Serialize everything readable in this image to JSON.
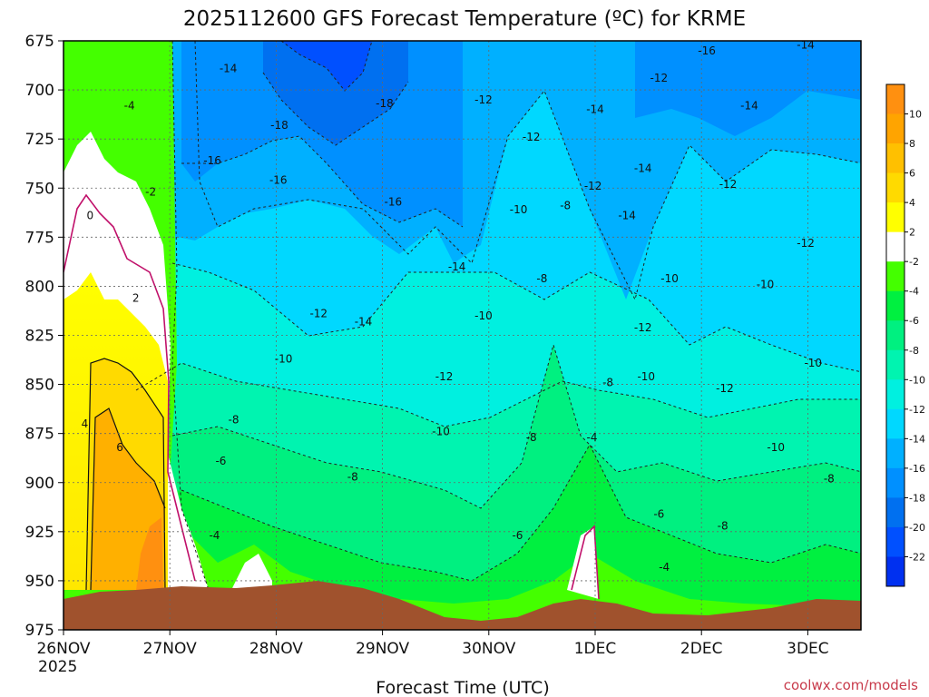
{
  "chart_data": {
    "type": "heatmap",
    "title": "2025112600 GFS Forecast Temperature (ºC) for KRME",
    "xlabel": "Forecast Time (UTC)",
    "ylabel": "",
    "credit": "coolwx.com/models",
    "x_ticks": [
      "26NOV",
      "27NOV",
      "28NOV",
      "29NOV",
      "30NOV",
      "1DEC",
      "2DEC",
      "3DEC"
    ],
    "x_tick_sublabel": "2025",
    "y_ticks": [
      675,
      700,
      725,
      750,
      775,
      800,
      825,
      850,
      875,
      900,
      925,
      950,
      975
    ],
    "y_axis": "pressure (hPa), inverted",
    "ylim": [
      975,
      675
    ],
    "xlim_days": [
      0,
      7.5
    ],
    "grid": true,
    "colorbar": {
      "labels": [
        "10",
        "8",
        "6",
        "4",
        "2",
        "-2",
        "-4",
        "-6",
        "-8",
        "-10",
        "-12",
        "-14",
        "-16",
        "-18",
        "-20",
        "-22"
      ],
      "colors": [
        "#ff9010",
        "#ffa400",
        "#ffc000",
        "#ffda00",
        "#ffff00",
        "#ffffff",
        "#44ff00",
        "#00f040",
        "#00f080",
        "#00f4b0",
        "#00f0e0",
        "#00d8ff",
        "#00b0ff",
        "#0090ff",
        "#0070f0",
        "#0050ff",
        "#0030f0"
      ]
    },
    "contour_labels": [
      {
        "text": "-14",
        "day": 1.55,
        "p": 689
      },
      {
        "text": "-4",
        "day": 0.62,
        "p": 708
      },
      {
        "text": "-18",
        "day": 2.03,
        "p": 718
      },
      {
        "text": "-18",
        "day": 3.02,
        "p": 707
      },
      {
        "text": "-16",
        "day": 1.4,
        "p": 736
      },
      {
        "text": "-16",
        "day": 2.02,
        "p": 746
      },
      {
        "text": "-2",
        "day": 0.82,
        "p": 752
      },
      {
        "text": "0",
        "day": 0.25,
        "p": 764
      },
      {
        "text": "-16",
        "day": 3.1,
        "p": 757
      },
      {
        "text": "-12",
        "day": 3.95,
        "p": 705
      },
      {
        "text": "-12",
        "day": 4.4,
        "p": 724
      },
      {
        "text": "-14",
        "day": 5.0,
        "p": 710
      },
      {
        "text": "-12",
        "day": 5.6,
        "p": 694
      },
      {
        "text": "-16",
        "day": 6.05,
        "p": 680
      },
      {
        "text": "-14",
        "day": 6.98,
        "p": 677
      },
      {
        "text": "-14",
        "day": 6.45,
        "p": 708
      },
      {
        "text": "-14",
        "day": 5.45,
        "p": 740
      },
      {
        "text": "-12",
        "day": 4.98,
        "p": 749
      },
      {
        "text": "-8",
        "day": 4.72,
        "p": 759
      },
      {
        "text": "-10",
        "day": 4.28,
        "p": 761
      },
      {
        "text": "-14",
        "day": 5.3,
        "p": 764
      },
      {
        "text": "-12",
        "day": 6.25,
        "p": 748
      },
      {
        "text": "-12",
        "day": 6.98,
        "p": 778
      },
      {
        "text": "-14",
        "day": 3.7,
        "p": 790
      },
      {
        "text": "-8",
        "day": 4.5,
        "p": 796
      },
      {
        "text": "-10",
        "day": 5.7,
        "p": 796
      },
      {
        "text": "-10",
        "day": 6.6,
        "p": 799
      },
      {
        "text": "2",
        "day": 0.68,
        "p": 806
      },
      {
        "text": "-12",
        "day": 2.4,
        "p": 814
      },
      {
        "text": "-14",
        "day": 2.82,
        "p": 818
      },
      {
        "text": "-10",
        "day": 3.95,
        "p": 815
      },
      {
        "text": "-12",
        "day": 5.45,
        "p": 821
      },
      {
        "text": "-10",
        "day": 2.07,
        "p": 837
      },
      {
        "text": "-12",
        "day": 3.58,
        "p": 846
      },
      {
        "text": "-8",
        "day": 5.12,
        "p": 849
      },
      {
        "text": "-10",
        "day": 5.48,
        "p": 846
      },
      {
        "text": "-10",
        "day": 7.05,
        "p": 839
      },
      {
        "text": "-12",
        "day": 6.22,
        "p": 852
      },
      {
        "text": "4",
        "day": 0.2,
        "p": 870
      },
      {
        "text": "-8",
        "day": 1.6,
        "p": 868
      },
      {
        "text": "-4",
        "day": 4.97,
        "p": 877
      },
      {
        "text": "-10",
        "day": 3.55,
        "p": 874
      },
      {
        "text": "-8",
        "day": 4.4,
        "p": 877
      },
      {
        "text": "6",
        "day": 0.53,
        "p": 882
      },
      {
        "text": "-10",
        "day": 6.7,
        "p": 882
      },
      {
        "text": "-6",
        "day": 1.48,
        "p": 889
      },
      {
        "text": "-8",
        "day": 2.72,
        "p": 897
      },
      {
        "text": "-8",
        "day": 7.2,
        "p": 898
      },
      {
        "text": "-6",
        "day": 5.6,
        "p": 916
      },
      {
        "text": "-8",
        "day": 6.2,
        "p": 922
      },
      {
        "text": "-4",
        "day": 1.42,
        "p": 927
      },
      {
        "text": "-6",
        "day": 4.27,
        "p": 927
      },
      {
        "text": "-4",
        "day": 5.65,
        "p": 943
      }
    ]
  }
}
